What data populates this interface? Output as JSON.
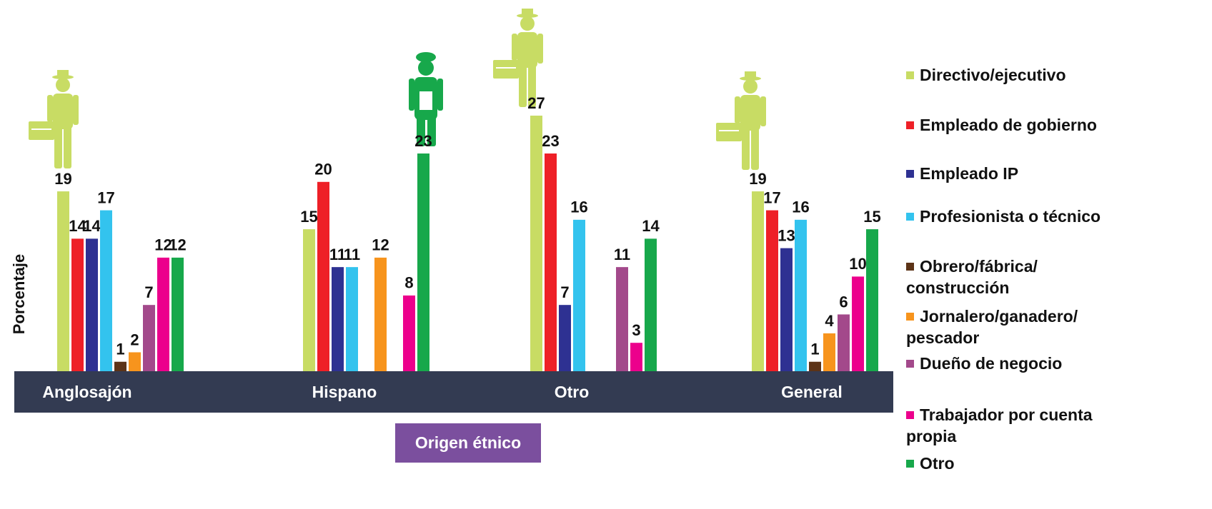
{
  "chart_data": {
    "type": "bar",
    "y_label": "Porcentaje",
    "x_label": "Origen étnico",
    "categories": [
      "Anglosajón",
      "Hispano",
      "Otro",
      "General"
    ],
    "ylim": [
      0,
      30
    ],
    "series": [
      {
        "name": "Directivo/ejecutivo",
        "color": "#c8dc64",
        "values": [
          19,
          15,
          27,
          19
        ]
      },
      {
        "name": "Empleado de gobierno",
        "color": "#ee2027",
        "values": [
          14,
          20,
          23,
          17
        ]
      },
      {
        "name": "Empleado IP",
        "color": "#2e3192",
        "values": [
          14,
          11,
          7,
          13
        ]
      },
      {
        "name": "Profesionista o técnico",
        "color": "#33c3ee",
        "values": [
          17,
          11,
          16,
          16
        ]
      },
      {
        "name": "Obrero/fábrica/ construcción",
        "color": "#5c3317",
        "values": [
          1,
          null,
          null,
          1
        ]
      },
      {
        "name": "Jornalero/ganadero/ pescador",
        "color": "#f7941d",
        "values": [
          2,
          12,
          null,
          4
        ]
      },
      {
        "name": "Dueño de negocio",
        "color": "#a3498b",
        "values": [
          7,
          null,
          11,
          6
        ]
      },
      {
        "name": "Trabajador por cuenta propia",
        "color": "#ec008c",
        "values": [
          12,
          8,
          3,
          10
        ]
      },
      {
        "name": "Otro",
        "color": "#17a84b",
        "values": [
          12,
          23,
          14,
          15
        ]
      }
    ]
  }
}
